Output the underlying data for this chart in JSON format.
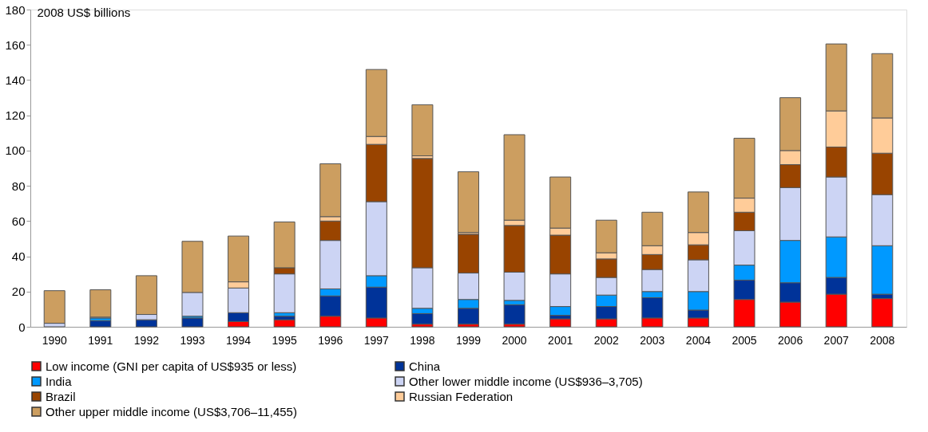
{
  "chart_data": {
    "type": "bar",
    "stacked": true,
    "ylabel": "2008 US$ billions",
    "categories": [
      "1990",
      "1991",
      "1992",
      "1993",
      "1994",
      "1995",
      "1996",
      "1997",
      "1998",
      "1999",
      "2000",
      "2001",
      "2002",
      "2003",
      "2004",
      "2005",
      "2006",
      "2007",
      "2008"
    ],
    "series": [
      {
        "name": "Low income (GNI per capita of US$935 or less)",
        "color": "#ff0000",
        "values": [
          0,
          0,
          0,
          0,
          3,
          4,
          6,
          5,
          1.5,
          1.5,
          1.5,
          4.5,
          4.5,
          5,
          5,
          15.5,
          14,
          18.5,
          16
        ]
      },
      {
        "name": "China",
        "color": "#003399",
        "values": [
          0,
          3.5,
          4,
          5,
          5,
          2,
          11.5,
          17.5,
          6,
          9,
          11,
          2,
          7,
          11.5,
          4.5,
          11,
          11,
          9.5,
          2.5
        ]
      },
      {
        "name": "India",
        "color": "#0099ff",
        "values": [
          0,
          1.5,
          0,
          1,
          null,
          2,
          4,
          6.5,
          3,
          5,
          2.5,
          5,
          6.5,
          3.5,
          10.5,
          8.5,
          24,
          23,
          27.5
        ]
      },
      {
        "name": "Other lower middle income  (US$936–3,705)",
        "color": "#ccd4f4",
        "values": [
          2,
          0.5,
          3,
          13.5,
          14,
          22,
          27.5,
          42,
          23,
          15,
          16,
          18.5,
          10,
          12.5,
          18,
          19.5,
          30,
          34,
          29
        ]
      },
      {
        "name": "Brazil",
        "color": "#994400",
        "values": [
          0,
          0,
          0,
          0,
          null,
          3.5,
          11,
          32.5,
          62,
          22,
          26.5,
          22,
          10.5,
          8.5,
          8.5,
          10.5,
          13,
          17,
          23.5
        ]
      },
      {
        "name": "Russian Federation",
        "color": "#ffcc99",
        "values": [
          0,
          0,
          0,
          0,
          3.5,
          0,
          2.5,
          4.5,
          1.5,
          1,
          3,
          4,
          3.5,
          5,
          7,
          8,
          8,
          20.5,
          20
        ]
      },
      {
        "name": "Other upper middle income (US$3,706–11,455)",
        "color": "#cc9e60",
        "values": [
          18.5,
          15.5,
          22,
          29,
          26,
          26,
          30,
          38,
          29,
          34.5,
          48.5,
          29,
          18.5,
          19,
          23,
          34,
          30,
          38,
          36.5
        ]
      }
    ],
    "ylim": [
      0,
      180
    ],
    "yticks": [
      0,
      20,
      40,
      60,
      80,
      100,
      120,
      140,
      160,
      180
    ],
    "grid": false,
    "legend": "bottom"
  }
}
